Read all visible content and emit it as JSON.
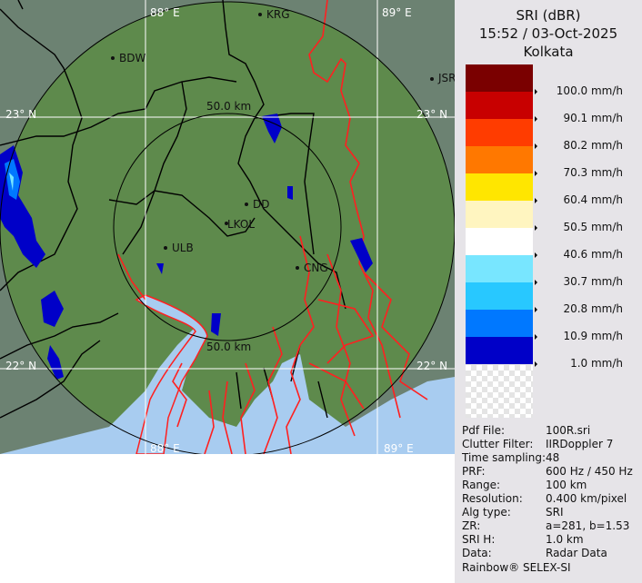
{
  "header": {
    "product": "SRI (dBR)",
    "datetime": "15:52 / 03-Oct-2025",
    "station": "Kolkata"
  },
  "legend": {
    "items": [
      {
        "label": "100.0 mm/h",
        "color": "#7a0000"
      },
      {
        "label": "90.1 mm/h",
        "color": "#c80000"
      },
      {
        "label": "80.2 mm/h",
        "color": "#ff3c00"
      },
      {
        "label": "70.3 mm/h",
        "color": "#ff7800"
      },
      {
        "label": "60.4 mm/h",
        "color": "#ffe600"
      },
      {
        "label": "50.5 mm/h",
        "color": "#fff5c0"
      },
      {
        "label": "40.6 mm/h",
        "color": "#ffffff"
      },
      {
        "label": "30.7 mm/h",
        "color": "#78e6ff"
      },
      {
        "label": "20.8 mm/h",
        "color": "#28c8ff"
      },
      {
        "label": "10.9 mm/h",
        "color": "#0078ff"
      },
      {
        "label": "1.0 mm/h",
        "color": "#0000c8"
      }
    ]
  },
  "info": [
    {
      "key": "Pdf File:",
      "value": "100R.sri"
    },
    {
      "key": "Clutter Filter:",
      "value": "IIRDoppler 7"
    },
    {
      "key": "Time sampling:",
      "value": "48"
    },
    {
      "key": "PRF:",
      "value": "600 Hz / 450 Hz"
    },
    {
      "key": "Range:",
      "value": "100 km"
    },
    {
      "key": "Resolution:",
      "value": "0.400 km/pixel"
    },
    {
      "key": "Alg type:",
      "value": "SRI"
    },
    {
      "key": "ZR:",
      "value": "a=281, b=1.53"
    },
    {
      "key": "SRI H:",
      "value": "1.0 km"
    },
    {
      "key": "Data:",
      "value": "Radar Data"
    }
  ],
  "brand": "Rainbow® SELEX-SI",
  "map": {
    "grid_labels": {
      "lon_88_top": "88° E",
      "lon_89_top": "89° E",
      "lon_88_bottom": "88° E",
      "lon_89_bottom": "89° E",
      "lat_23_left": "23° N",
      "lat_23_right": "23° N",
      "lat_22_left": "22° N",
      "lat_22_right": "22° N"
    },
    "range_labels": {
      "inner_top": "50.0 km",
      "inner_bottom": "50.0 km"
    },
    "cities": {
      "BDW": "BDW",
      "KRG": "KRG",
      "JSR": "JSR",
      "DD": "DD",
      "LKOL": "LKOL",
      "ULB": "ULB",
      "CNG": "CNG"
    },
    "colors": {
      "land": "#5e8a4c",
      "outside": "#6c8272",
      "water": "#a8ccf0",
      "rivers": "#ff2020",
      "boundaries": "#000000",
      "grid": "#ffffff"
    }
  }
}
